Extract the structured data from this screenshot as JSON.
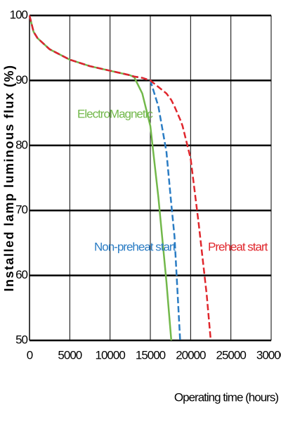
{
  "chart_data": {
    "type": "line",
    "y_label": "Installed lamp luminous flux (%)",
    "x_label": "Operating time (hours)",
    "x": [
      0,
      500,
      1000,
      2500,
      5000,
      7500,
      10000,
      12500,
      13000,
      14000,
      15000,
      16000,
      17000,
      17600,
      18000,
      18700,
      19000,
      20000,
      21000,
      22000,
      22500
    ],
    "series": [
      {
        "name": "ElectroMagnetic",
        "color": "#72b84a",
        "dashed": false,
        "values": [
          100,
          97.5,
          96.5,
          94.8,
          93.2,
          92.2,
          91.5,
          90.8,
          90.5,
          88,
          83,
          72,
          59,
          50,
          null,
          null,
          null,
          null,
          null,
          null,
          null
        ]
      },
      {
        "name": "Non-preheat start",
        "color": "#2a7cc4",
        "dashed": true,
        "values": [
          100,
          97.5,
          96.5,
          94.8,
          93.2,
          92.2,
          91.5,
          90.8,
          90.6,
          90.4,
          90,
          86,
          79,
          71,
          66,
          50,
          null,
          null,
          null,
          null,
          null
        ]
      },
      {
        "name": "Preheat start",
        "color": "#e0262c",
        "dashed": true,
        "values": [
          100,
          97.5,
          96.5,
          94.8,
          93.2,
          92.2,
          91.5,
          90.8,
          90.6,
          90.4,
          90,
          89,
          88,
          87,
          86,
          84,
          83,
          78,
          68,
          57,
          50
        ]
      }
    ],
    "xlim": [
      0,
      30000
    ],
    "ylim": [
      50,
      100
    ],
    "xticks": [
      0,
      5000,
      10000,
      15000,
      20000,
      25000,
      30000
    ],
    "yticks": [
      50,
      60,
      70,
      80,
      90,
      100
    ],
    "grid": true
  }
}
